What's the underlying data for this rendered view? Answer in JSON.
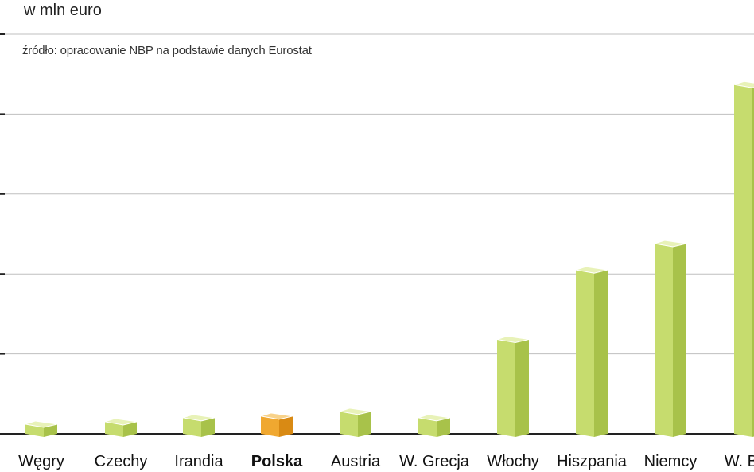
{
  "chart_data": {
    "type": "bar",
    "unit_label": "w mln euro",
    "source_note": "źródło: opracowanie NBP na podstawie danych Eurostat",
    "categories": [
      "Węgry",
      "Czechy",
      "Irandia",
      "Polska",
      "Austria",
      "W. Grecja",
      "Włochy",
      "Hiszpania",
      "Niemcy",
      "W. Bryt"
    ],
    "values": [
      0.12,
      0.15,
      0.2,
      0.22,
      0.28,
      0.2,
      1.18,
      2.05,
      2.38,
      4.37
    ],
    "highlight_category": "Polska",
    "ylim": [
      0,
      5
    ],
    "grid": true,
    "legend": "none",
    "colors": {
      "bar_front": "#c6dc6e",
      "bar_side": "#a8c24a",
      "bar_top": "#e8f2b8",
      "highlight_front": "#f0a830",
      "highlight_side": "#d98a14",
      "highlight_top": "#f8d28a",
      "gridline": "#bfbfbf",
      "axis": "#222222"
    }
  }
}
